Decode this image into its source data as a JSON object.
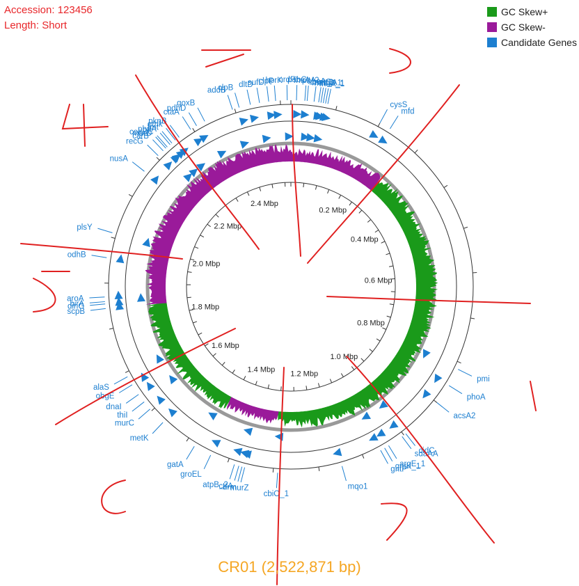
{
  "header": {
    "accession": "Accession: 123456",
    "length": "Length: Short"
  },
  "legend": [
    {
      "label": "GC Skew+",
      "color": "#1a9a1a"
    },
    {
      "label": "GC Skew-",
      "color": "#9a1a9a"
    },
    {
      "label": "Candidate Genes",
      "color": "#1d7fd0"
    }
  ],
  "caption": "CR01  (2,522,871 bp)",
  "chart_data": {
    "type": "circular-genome",
    "genome_length_bp": 2522871,
    "axis_labels": [
      {
        "pos_mbp": 0.2,
        "label": "0.2 Mbp"
      },
      {
        "pos_mbp": 0.4,
        "label": "0.4 Mbp"
      },
      {
        "pos_mbp": 0.6,
        "label": "0.6 Mbp"
      },
      {
        "pos_mbp": 0.8,
        "label": "0.8 Mbp"
      },
      {
        "pos_mbp": 1.0,
        "label": "1.0 Mbp"
      },
      {
        "pos_mbp": 1.2,
        "label": "1.2 Mbp"
      },
      {
        "pos_mbp": 1.4,
        "label": "1.4 Mbp"
      },
      {
        "pos_mbp": 1.6,
        "label": "1.6 Mbp"
      },
      {
        "pos_mbp": 1.8,
        "label": "1.8 Mbp"
      },
      {
        "pos_mbp": 2.0,
        "label": "2.0 Mbp"
      },
      {
        "pos_mbp": 2.2,
        "label": "2.2 Mbp"
      },
      {
        "pos_mbp": 2.4,
        "label": "2.4 Mbp"
      }
    ],
    "gc_skew_sign_by_region": [
      {
        "start_mbp": 0.0,
        "end_mbp": 0.28,
        "sign": "-"
      },
      {
        "start_mbp": 0.28,
        "end_mbp": 1.3,
        "sign": "+"
      },
      {
        "start_mbp": 1.3,
        "end_mbp": 1.46,
        "sign": "-"
      },
      {
        "start_mbp": 1.46,
        "end_mbp": 1.84,
        "sign": "+"
      },
      {
        "start_mbp": 1.84,
        "end_mbp": 2.52,
        "sign": "-"
      }
    ],
    "genes": [
      {
        "name": "pitA",
        "pos_mbp": 0.035
      },
      {
        "name": "mntC",
        "pos_mbp": 0.06
      },
      {
        "name": "mntB",
        "pos_mbp": 0.065
      },
      {
        "name": "mnh_A1",
        "pos_mbp": 0.07
      },
      {
        "name": "mnhD_1",
        "pos_mbp": 0.075
      },
      {
        "name": "fhuA_1",
        "pos_mbp": 0.08
      },
      {
        "name": "abcA",
        "pos_mbp": 0.05
      },
      {
        "name": "fhuA_2",
        "pos_mbp": 0.03
      },
      {
        "name": "pabC",
        "pos_mbp": 0.012
      },
      {
        "name": "nrdF",
        "pos_mbp": 2.515
      },
      {
        "name": "hprK",
        "pos_mbp": 2.49
      },
      {
        "name": "clpP",
        "pos_mbp": 2.475
      },
      {
        "name": "sufD",
        "pos_mbp": 2.455
      },
      {
        "name": "dltD",
        "pos_mbp": 2.435
      },
      {
        "name": "clpB",
        "pos_mbp": 2.41
      },
      {
        "name": "addB",
        "pos_mbp": 2.395
      },
      {
        "name": "cysS",
        "pos_mbp": 0.2
      },
      {
        "name": "mfd",
        "pos_mbp": 0.225
      },
      {
        "name": "qoxB",
        "pos_mbp": 2.33
      },
      {
        "name": "pdhD",
        "pos_mbp": 2.31
      },
      {
        "name": "ctaA",
        "pos_mbp": 2.295
      },
      {
        "name": "pknB",
        "pos_mbp": 2.265
      },
      {
        "name": "gmk",
        "pos_mbp": 2.255
      },
      {
        "name": "fmt",
        "pos_mbp": 2.245
      },
      {
        "name": "pbpA",
        "pos_mbp": 2.24
      },
      {
        "name": "coaBC",
        "pos_mbp": 2.232
      },
      {
        "name": "murD",
        "pos_mbp": 2.228
      },
      {
        "name": "carB",
        "pos_mbp": 2.22
      },
      {
        "name": "recG",
        "pos_mbp": 2.205
      },
      {
        "name": "nusA",
        "pos_mbp": 2.16
      },
      {
        "name": "plsY",
        "pos_mbp": 2.01
      },
      {
        "name": "odhB",
        "pos_mbp": 1.955
      },
      {
        "name": "aroA",
        "pos_mbp": 1.87
      },
      {
        "name": "birA",
        "pos_mbp": 1.86
      },
      {
        "name": "dinG",
        "pos_mbp": 1.855
      },
      {
        "name": "scpB",
        "pos_mbp": 1.845
      },
      {
        "name": "alaS",
        "pos_mbp": 1.69
      },
      {
        "name": "obgE",
        "pos_mbp": 1.67
      },
      {
        "name": "dnaI",
        "pos_mbp": 1.645
      },
      {
        "name": "thiI",
        "pos_mbp": 1.625
      },
      {
        "name": "murC",
        "pos_mbp": 1.605
      },
      {
        "name": "metK",
        "pos_mbp": 1.565
      },
      {
        "name": "gatA",
        "pos_mbp": 1.48
      },
      {
        "name": "groEL",
        "pos_mbp": 1.44
      },
      {
        "name": "atpB_2",
        "pos_mbp": 1.385
      },
      {
        "name": "ctrA",
        "pos_mbp": 1.375
      },
      {
        "name": "drm",
        "pos_mbp": 1.368
      },
      {
        "name": "murZ",
        "pos_mbp": 1.362
      },
      {
        "name": "cbiO_1",
        "pos_mbp": 1.29
      },
      {
        "name": "mqo1",
        "pos_mbp": 1.15
      },
      {
        "name": "gntP",
        "pos_mbp": 1.06
      },
      {
        "name": "gntK_1",
        "pos_mbp": 1.05
      },
      {
        "name": "argE_1",
        "pos_mbp": 1.04
      },
      {
        "name": "sdaAA",
        "pos_mbp": 1.005
      },
      {
        "name": "cidC",
        "pos_mbp": 0.995
      },
      {
        "name": "acsA2",
        "pos_mbp": 0.9
      },
      {
        "name": "phoA",
        "pos_mbp": 0.855
      },
      {
        "name": "pmi",
        "pos_mbp": 0.815
      }
    ]
  }
}
